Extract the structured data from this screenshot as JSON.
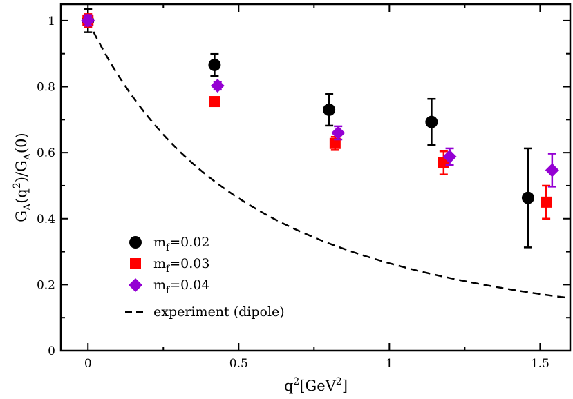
{
  "chart_data": {
    "type": "scatter",
    "title": "",
    "xlabel": {
      "base": "q",
      "sup": "2",
      "rest": "[GeV",
      "sup2": "2",
      "close": "]"
    },
    "ylabel": {
      "G1": "G",
      "sub1": "A",
      "mid1": "(q",
      "sup": "2",
      "mid2": ")/G",
      "sub2": "A",
      "end": "(0)"
    },
    "xlim": [
      -0.09,
      1.6
    ],
    "ylim": [
      0,
      1.05
    ],
    "xticks": [
      0,
      0.5,
      1,
      1.5
    ],
    "xtick_labels": [
      "0",
      "0.5",
      "1",
      "1.5"
    ],
    "yticks": [
      0,
      0.2,
      0.4,
      0.6,
      0.8,
      1
    ],
    "ytick_labels": [
      "0",
      "0.2",
      "0.4",
      "0.6",
      "0.8",
      "1"
    ],
    "grid": false,
    "legend_position": "bottom-left",
    "series": [
      {
        "name": "m_f=0.02",
        "label_main": "m",
        "label_sub": "f",
        "label_rest": "=0.02",
        "marker": "circle",
        "color": "#000000",
        "points": [
          {
            "x": 0.0,
            "y": 1.0,
            "err": 0.035
          },
          {
            "x": 0.42,
            "y": 0.866,
            "err": 0.033
          },
          {
            "x": 0.8,
            "y": 0.73,
            "err": 0.048
          },
          {
            "x": 1.14,
            "y": 0.693,
            "err": 0.07
          },
          {
            "x": 1.46,
            "y": 0.463,
            "err": 0.15
          }
        ]
      },
      {
        "name": "m_f=0.03",
        "label_main": "m",
        "label_sub": "f",
        "label_rest": "=0.03",
        "marker": "square",
        "color": "#ff0000",
        "points": [
          {
            "x": 0.0,
            "y": 1.0,
            "err": 0.02
          },
          {
            "x": 0.42,
            "y": 0.755,
            "err": 0.01
          },
          {
            "x": 0.82,
            "y": 0.628,
            "err": 0.02
          },
          {
            "x": 1.18,
            "y": 0.569,
            "err": 0.035
          },
          {
            "x": 1.52,
            "y": 0.45,
            "err": 0.05
          }
        ]
      },
      {
        "name": "m_f=0.04",
        "label_main": "m",
        "label_sub": "f",
        "label_rest": "=0.04",
        "marker": "diamond",
        "color": "#9400d3",
        "points": [
          {
            "x": 0.0,
            "y": 1.0,
            "err": 0.015
          },
          {
            "x": 0.43,
            "y": 0.803,
            "err": 0.012
          },
          {
            "x": 0.83,
            "y": 0.66,
            "err": 0.02
          },
          {
            "x": 1.2,
            "y": 0.588,
            "err": 0.025
          },
          {
            "x": 1.54,
            "y": 0.547,
            "err": 0.05
          }
        ]
      }
    ],
    "curve": {
      "name": "experiment (dipole)",
      "style": "dashed",
      "color": "#000000",
      "formula": "1/(1+q^2/M_A^2)^2",
      "M_A": 1.03,
      "x_range": [
        0,
        1.6
      ]
    }
  }
}
